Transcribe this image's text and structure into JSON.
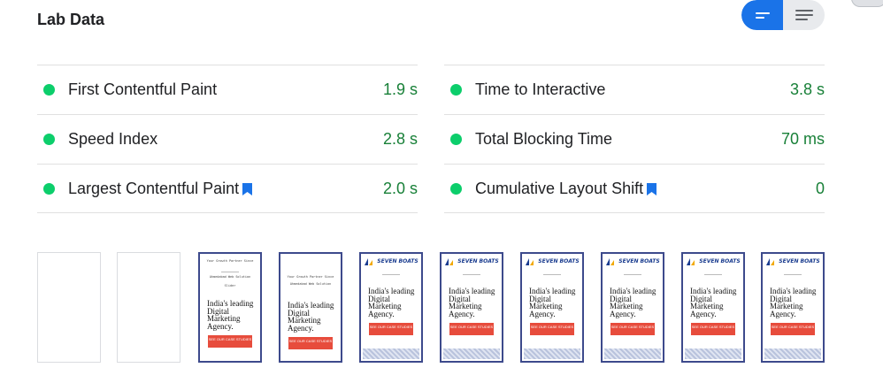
{
  "section": {
    "title": "Lab Data"
  },
  "view_toggle": {
    "options": [
      {
        "name": "list-view",
        "active": true
      },
      {
        "name": "detail-view",
        "active": false
      }
    ]
  },
  "colors": {
    "accent": "#1a73e8",
    "pass": "#0cce6b",
    "value": "#188038",
    "bookmark": "#1a73e8"
  },
  "metrics_left": [
    {
      "name": "First Contentful Paint",
      "value": "1.9 s",
      "bookmark": false
    },
    {
      "name": "Speed Index",
      "value": "2.8 s",
      "bookmark": false
    },
    {
      "name": "Largest Contentful Paint",
      "value": "2.0 s",
      "bookmark": true
    }
  ],
  "metrics_right": [
    {
      "name": "Time to Interactive",
      "value": "3.8 s",
      "bookmark": false
    },
    {
      "name": "Total Blocking Time",
      "value": "70 ms",
      "bookmark": false
    },
    {
      "name": "Cumulative Layout Shift",
      "value": "0",
      "bookmark": true
    }
  ],
  "filmstrip": [
    {
      "state": "blank"
    },
    {
      "state": "blank"
    },
    {
      "state": "text-only",
      "top_line": "Your Growth Partner Since",
      "small_line": "Ahmedabad Web Solution",
      "tiny": "Slider",
      "hero": [
        "India's leading",
        "Digital",
        "Marketing",
        "Agency."
      ],
      "cta": "SEE OUR CASE STUDIES"
    },
    {
      "state": "text-only",
      "top_line": "Your Growth Partner Since",
      "small_line": "Ahmedabad Web Solution",
      "hero": [
        "India's leading",
        "Digital",
        "Marketing",
        "Agency."
      ],
      "cta": "SEE OUR CASE STUDIES"
    },
    {
      "state": "loaded",
      "brand": "SEVEN BOATS",
      "hero": [
        "India's leading",
        "Digital",
        "Marketing",
        "Agency."
      ],
      "cta": "SEE OUR CASE STUDIES"
    },
    {
      "state": "loaded",
      "brand": "SEVEN BOATS",
      "hero": [
        "India's leading",
        "Digital",
        "Marketing",
        "Agency."
      ],
      "cta": "SEE OUR CASE STUDIES"
    },
    {
      "state": "loaded",
      "brand": "SEVEN BOATS",
      "hero": [
        "India's leading",
        "Digital",
        "Marketing",
        "Agency."
      ],
      "cta": "SEE OUR CASE STUDIES"
    },
    {
      "state": "loaded",
      "brand": "SEVEN BOATS",
      "hero": [
        "India's leading",
        "Digital",
        "Marketing",
        "Agency."
      ],
      "cta": "SEE OUR CASE STUDIES"
    },
    {
      "state": "loaded",
      "brand": "SEVEN BOATS",
      "hero": [
        "India's leading",
        "Digital",
        "Marketing",
        "Agency."
      ],
      "cta": "SEE OUR CASE STUDIES"
    },
    {
      "state": "loaded",
      "brand": "SEVEN BOATS",
      "hero": [
        "India's leading",
        "Digital",
        "Marketing",
        "Agency."
      ],
      "cta": "SEE OUR CASE STUDIES"
    }
  ]
}
